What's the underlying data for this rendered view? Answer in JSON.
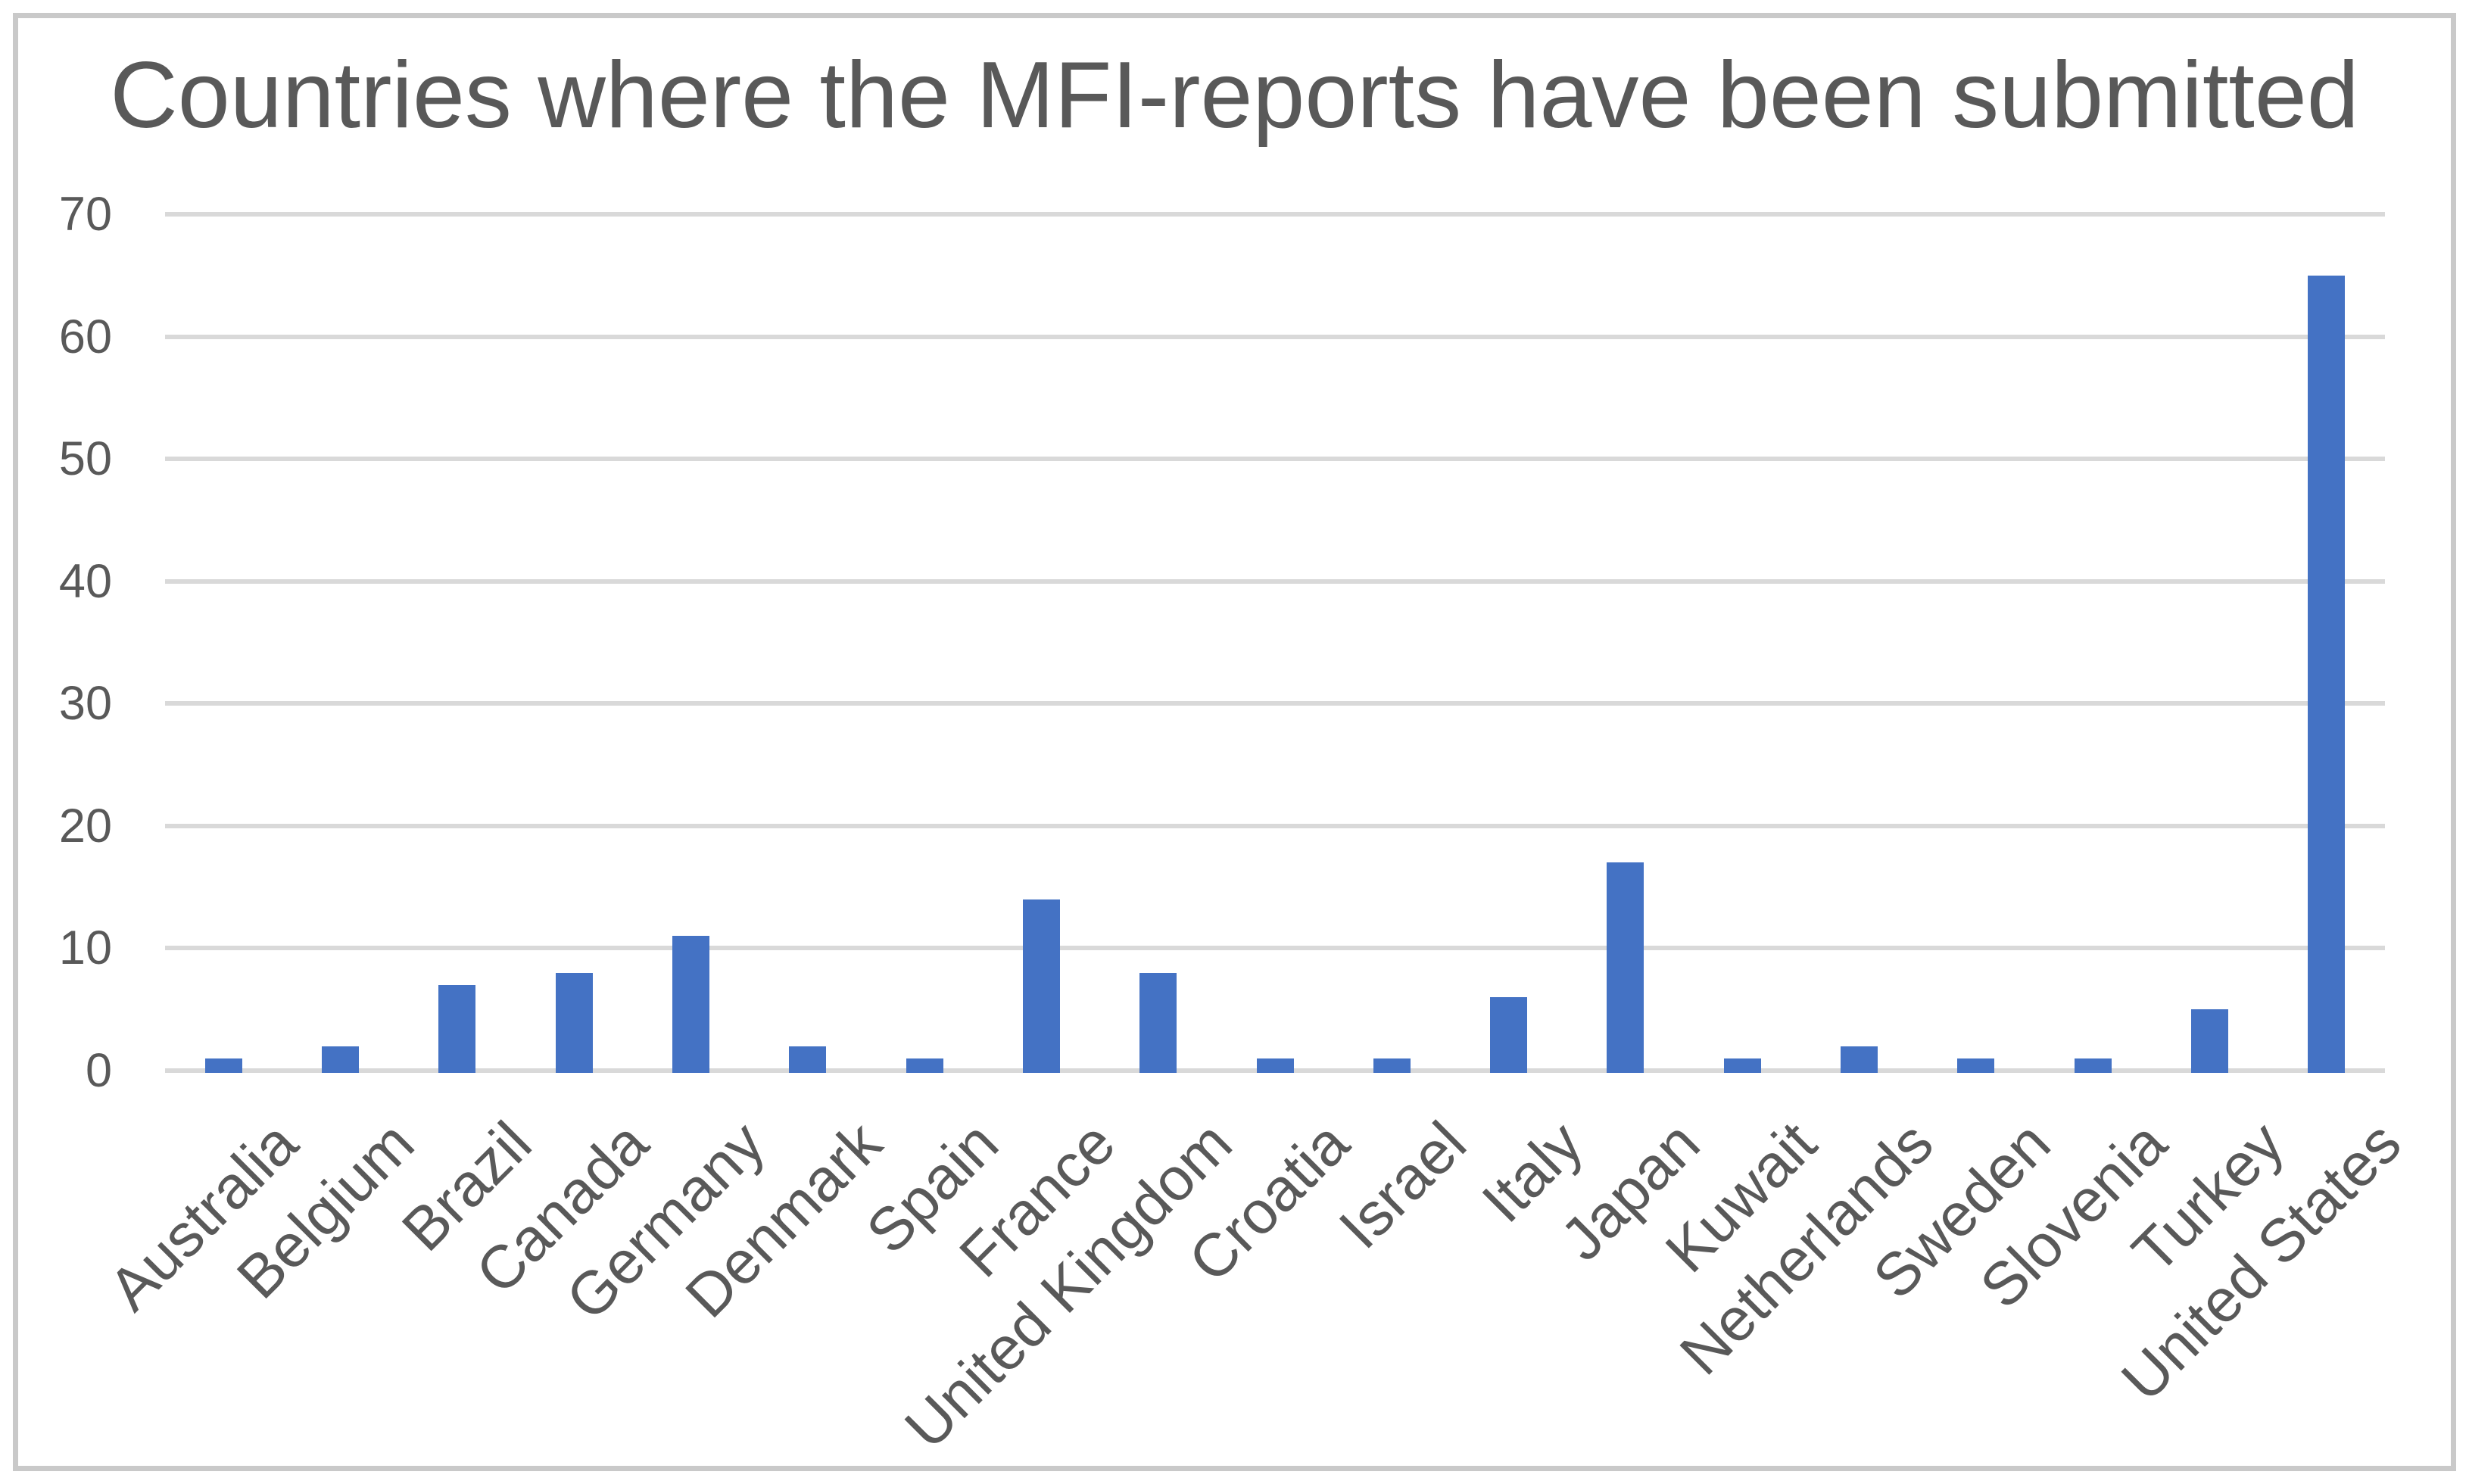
{
  "chart_data": {
    "type": "bar",
    "title": "Countries where the MFI-reports have been submitted",
    "categories": [
      "Australia",
      "Belgium",
      "Brazil",
      "Canada",
      "Germany",
      "Denmark",
      "Spain",
      "France",
      "United Kingdom",
      "Croatia",
      "Israel",
      "Italy",
      "Japan",
      "Kuwait",
      "Netherlands",
      "Sweden",
      "Slovenia",
      "Turkey",
      "United States"
    ],
    "values": [
      1,
      2,
      7,
      8,
      11,
      2,
      1,
      14,
      8,
      1,
      1,
      6,
      17,
      1,
      2,
      1,
      1,
      5,
      65
    ],
    "xlabel": "",
    "ylabel": "",
    "ylim": [
      0,
      70
    ],
    "y_ticks": [
      0,
      10,
      20,
      30,
      40,
      50,
      60,
      70
    ],
    "grid": "horizontal",
    "legend": "none",
    "bar_color": "#4472c4",
    "gridline_color": "#d9d9d9",
    "text_color": "#595959",
    "frame_color": "#c9c9c9",
    "background_color": "#ffffff"
  }
}
